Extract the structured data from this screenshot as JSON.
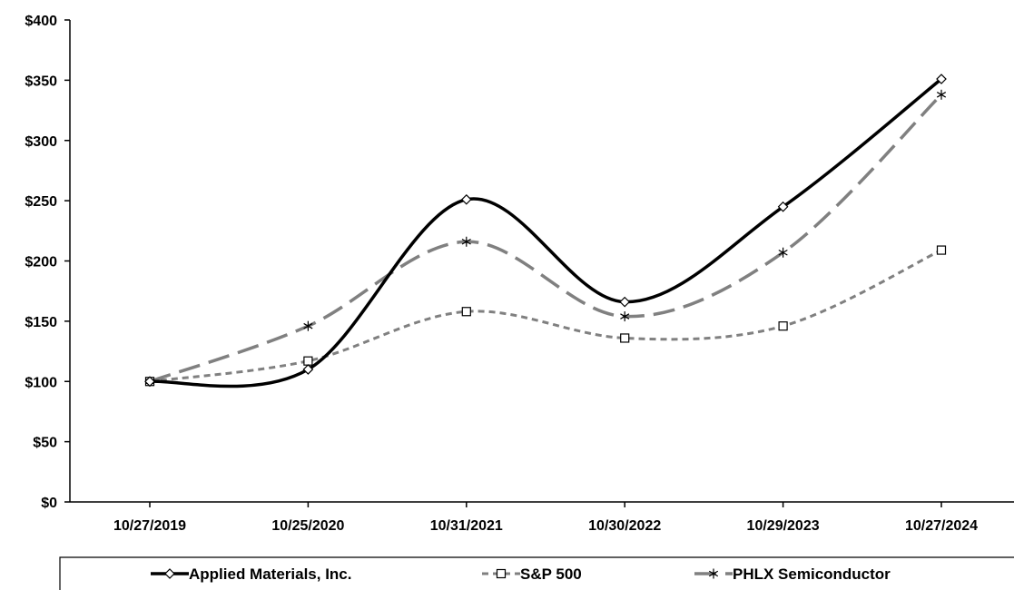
{
  "chart_data": {
    "type": "line",
    "title": "",
    "xlabel": "",
    "ylabel": "",
    "categories": [
      "10/27/2019",
      "10/25/2020",
      "10/31/2021",
      "10/30/2022",
      "10/29/2023",
      "10/27/2024"
    ],
    "y_ticks": [
      "$0",
      "$50",
      "$100",
      "$150",
      "$200",
      "$250",
      "$300",
      "$350",
      "$400"
    ],
    "ylim": [
      0,
      400
    ],
    "grid": false,
    "legend_position": "bottom",
    "smooth": true,
    "series": [
      {
        "name": "Applied Materials, Inc.",
        "values": [
          100,
          110,
          251,
          166,
          245,
          351
        ],
        "color": "#000000",
        "style": "solid",
        "marker": "diamond"
      },
      {
        "name": "S&P 500",
        "values": [
          100,
          117,
          158,
          136,
          146,
          209
        ],
        "color": "#808080",
        "style": "dotted",
        "marker": "square"
      },
      {
        "name": "PHLX Semiconductor",
        "values": [
          100,
          146,
          216,
          154,
          207,
          338
        ],
        "color": "#808080",
        "style": "dashed",
        "marker": "asterisk"
      }
    ]
  }
}
